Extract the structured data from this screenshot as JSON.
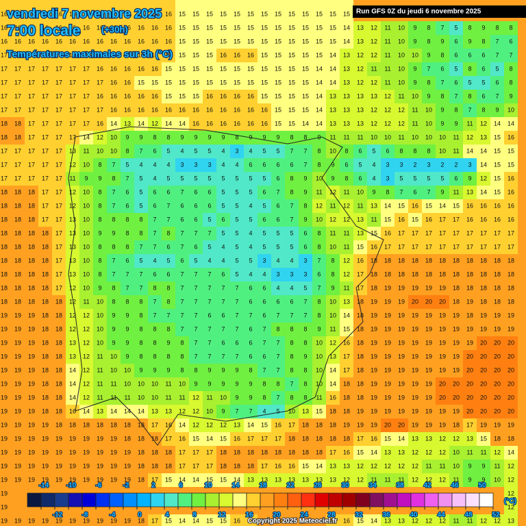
{
  "header": {
    "title": "vendredi 7 novembre 2025",
    "time": "7:00 locale",
    "lead": "(+30h)",
    "subtitle": "Températures maximales sur 3h (°C)",
    "run": "Run GFS 0Z du jeudi 6 novembre 2025"
  },
  "grid": {
    "rows": [
      [
        16,
        16,
        16,
        16,
        16,
        16,
        16,
        16,
        16,
        16,
        16,
        16,
        16,
        15,
        15,
        15,
        15,
        15,
        15,
        15,
        15,
        15,
        15,
        15,
        15,
        15,
        null,
        null,
        null,
        null,
        null,
        null,
        null,
        null,
        null,
        null,
        null,
        null
      ],
      [
        16,
        16,
        16,
        16,
        16,
        16,
        16,
        16,
        16,
        16,
        16,
        16,
        16,
        15,
        15,
        15,
        15,
        15,
        15,
        15,
        15,
        15,
        15,
        15,
        15,
        14,
        13,
        12,
        11,
        10,
        9,
        8,
        7,
        5,
        8,
        9,
        8,
        8
      ],
      [
        16,
        16,
        16,
        16,
        16,
        16,
        16,
        16,
        16,
        16,
        16,
        16,
        16,
        15,
        15,
        15,
        15,
        15,
        15,
        15,
        15,
        15,
        15,
        15,
        15,
        14,
        13,
        12,
        11,
        10,
        9,
        8,
        9,
        6,
        9,
        8,
        7,
        6
      ],
      [
        17,
        17,
        17,
        17,
        17,
        17,
        16,
        16,
        16,
        16,
        16,
        16,
        16,
        15,
        15,
        15,
        16,
        16,
        16,
        15,
        15,
        15,
        15,
        15,
        14,
        13,
        12,
        12,
        11,
        10,
        10,
        9,
        8,
        6,
        6,
        6,
        7,
        7
      ],
      [
        17,
        17,
        17,
        17,
        17,
        17,
        17,
        16,
        16,
        16,
        16,
        16,
        15,
        15,
        15,
        15,
        15,
        15,
        15,
        15,
        15,
        15,
        15,
        14,
        14,
        13,
        12,
        11,
        11,
        10,
        9,
        7,
        6,
        5,
        8,
        6,
        5,
        8
      ],
      [
        17,
        17,
        17,
        17,
        17,
        17,
        17,
        17,
        16,
        16,
        15,
        15,
        15,
        15,
        15,
        15,
        15,
        15,
        15,
        15,
        15,
        15,
        15,
        14,
        14,
        13,
        12,
        12,
        11,
        10,
        9,
        8,
        7,
        6,
        5,
        5,
        6,
        8
      ],
      [
        17,
        17,
        17,
        17,
        17,
        17,
        17,
        16,
        16,
        16,
        16,
        16,
        15,
        15,
        15,
        16,
        16,
        16,
        16,
        15,
        15,
        15,
        15,
        14,
        13,
        13,
        13,
        13,
        12,
        11,
        10,
        9,
        8,
        7,
        8,
        6,
        7,
        9
      ],
      [
        17,
        17,
        17,
        17,
        17,
        17,
        17,
        17,
        16,
        16,
        16,
        16,
        16,
        16,
        16,
        16,
        16,
        16,
        16,
        16,
        15,
        15,
        15,
        14,
        13,
        13,
        13,
        12,
        12,
        12,
        11,
        10,
        9,
        8,
        7,
        8,
        9,
        10
      ],
      [
        18,
        18,
        17,
        17,
        17,
        17,
        17,
        16,
        14,
        13,
        14,
        12,
        14,
        14,
        16,
        16,
        16,
        16,
        16,
        16,
        15,
        15,
        14,
        14,
        13,
        13,
        13,
        12,
        12,
        12,
        11,
        10,
        9,
        9,
        11,
        12,
        14,
        14
      ],
      [
        18,
        18,
        17,
        17,
        17,
        17,
        14,
        12,
        10,
        9,
        9,
        8,
        8,
        9,
        9,
        9,
        9,
        8,
        9,
        9,
        9,
        8,
        8,
        9,
        11,
        11,
        11,
        10,
        10,
        11,
        10,
        10,
        10,
        11,
        12,
        13,
        15,
        16
      ],
      [
        17,
        17,
        17,
        17,
        17,
        13,
        11,
        10,
        10,
        8,
        7,
        6,
        5,
        4,
        5,
        5,
        4,
        3,
        4,
        5,
        5,
        7,
        7,
        8,
        10,
        8,
        6,
        5,
        6,
        8,
        8,
        8,
        10,
        11,
        14,
        14,
        15,
        15
      ],
      [
        17,
        17,
        17,
        17,
        17,
        12,
        10,
        8,
        7,
        5,
        4,
        4,
        4,
        3,
        3,
        3,
        4,
        4,
        6,
        6,
        6,
        6,
        7,
        8,
        9,
        6,
        5,
        4,
        3,
        3,
        2,
        3,
        2,
        2,
        3,
        14,
        15,
        15
      ],
      [
        17,
        17,
        17,
        17,
        17,
        11,
        9,
        9,
        8,
        7,
        5,
        4,
        5,
        5,
        5,
        5,
        5,
        5,
        5,
        5,
        6,
        8,
        9,
        10,
        9,
        8,
        6,
        4,
        3,
        5,
        5,
        5,
        5,
        6,
        9,
        12,
        15,
        16
      ],
      [
        18,
        18,
        18,
        17,
        17,
        12,
        10,
        8,
        7,
        6,
        5,
        6,
        6,
        7,
        6,
        6,
        5,
        5,
        5,
        6,
        7,
        8,
        9,
        11,
        12,
        11,
        10,
        9,
        8,
        7,
        6,
        7,
        9,
        11,
        13,
        14,
        15,
        16
      ],
      [
        18,
        18,
        18,
        17,
        17,
        12,
        10,
        8,
        7,
        6,
        5,
        6,
        7,
        6,
        6,
        6,
        5,
        5,
        4,
        5,
        6,
        7,
        8,
        12,
        11,
        12,
        11,
        13,
        14,
        15,
        16,
        15,
        14,
        15,
        16,
        16,
        16,
        16
      ],
      [
        18,
        18,
        18,
        17,
        17,
        13,
        10,
        8,
        8,
        8,
        8,
        7,
        7,
        6,
        6,
        5,
        6,
        5,
        5,
        6,
        6,
        7,
        9,
        10,
        12,
        12,
        13,
        11,
        15,
        16,
        15,
        16,
        17,
        17,
        16,
        16,
        16,
        16
      ],
      [
        18,
        18,
        18,
        18,
        17,
        13,
        10,
        9,
        9,
        8,
        8,
        7,
        8,
        7,
        7,
        7,
        5,
        5,
        4,
        5,
        5,
        5,
        6,
        8,
        11,
        11,
        13,
        15,
        16,
        17,
        17,
        17,
        17,
        17,
        17,
        17,
        17,
        17
      ],
      [
        18,
        18,
        18,
        18,
        17,
        13,
        10,
        8,
        8,
        8,
        7,
        7,
        6,
        7,
        6,
        5,
        4,
        5,
        4,
        5,
        5,
        5,
        6,
        8,
        10,
        11,
        15,
        16,
        17,
        17,
        17,
        17,
        17,
        17,
        17,
        17,
        17,
        17
      ],
      [
        18,
        18,
        18,
        18,
        17,
        13,
        10,
        8,
        7,
        6,
        5,
        4,
        5,
        6,
        5,
        4,
        4,
        5,
        5,
        3,
        4,
        4,
        3,
        7,
        8,
        12,
        16,
        18,
        18,
        18,
        18,
        18,
        18,
        18,
        18,
        18,
        18,
        18
      ],
      [
        18,
        18,
        18,
        18,
        17,
        13,
        10,
        8,
        7,
        7,
        7,
        6,
        6,
        7,
        7,
        7,
        6,
        5,
        4,
        4,
        3,
        3,
        3,
        6,
        8,
        12,
        17,
        18,
        18,
        18,
        18,
        18,
        18,
        18,
        18,
        18,
        18,
        18
      ],
      [
        18,
        18,
        18,
        18,
        17,
        12,
        10,
        9,
        8,
        7,
        7,
        8,
        8,
        7,
        7,
        7,
        7,
        7,
        6,
        6,
        4,
        4,
        5,
        7,
        9,
        11,
        17,
        18,
        19,
        19,
        19,
        19,
        19,
        18,
        18,
        18,
        18,
        18
      ],
      [
        18,
        18,
        18,
        18,
        18,
        12,
        11,
        10,
        8,
        8,
        8,
        7,
        8,
        7,
        7,
        7,
        7,
        7,
        6,
        6,
        6,
        6,
        7,
        8,
        10,
        13,
        18,
        19,
        19,
        19,
        20,
        20,
        20,
        18,
        19,
        18,
        18,
        18
      ],
      [
        19,
        19,
        19,
        18,
        18,
        12,
        12,
        10,
        9,
        9,
        8,
        7,
        7,
        7,
        7,
        6,
        6,
        7,
        7,
        6,
        7,
        7,
        7,
        8,
        10,
        14,
        18,
        19,
        19,
        19,
        19,
        19,
        19,
        19,
        18,
        19,
        19,
        19
      ],
      [
        19,
        19,
        19,
        18,
        18,
        12,
        12,
        10,
        9,
        9,
        8,
        8,
        8,
        7,
        7,
        7,
        7,
        7,
        6,
        7,
        8,
        8,
        8,
        9,
        11,
        15,
        18,
        19,
        19,
        19,
        19,
        19,
        19,
        19,
        19,
        19,
        19,
        19
      ],
      [
        19,
        19,
        19,
        18,
        18,
        13,
        12,
        10,
        9,
        9,
        8,
        8,
        9,
        8,
        7,
        7,
        6,
        6,
        6,
        7,
        7,
        8,
        8,
        10,
        12,
        16,
        18,
        19,
        19,
        19,
        19,
        19,
        19,
        19,
        19,
        20,
        20,
        20
      ],
      [
        19,
        19,
        19,
        18,
        18,
        13,
        12,
        11,
        10,
        9,
        8,
        8,
        8,
        8,
        7,
        7,
        7,
        7,
        6,
        6,
        7,
        8,
        9,
        10,
        13,
        17,
        18,
        19,
        19,
        19,
        19,
        19,
        19,
        19,
        20,
        20,
        20,
        20
      ],
      [
        19,
        19,
        19,
        18,
        18,
        14,
        12,
        11,
        10,
        10,
        9,
        9,
        9,
        8,
        8,
        9,
        9,
        9,
        8,
        7,
        7,
        8,
        8,
        10,
        14,
        17,
        18,
        19,
        19,
        19,
        19,
        19,
        19,
        19,
        20,
        20,
        20,
        20
      ],
      [
        19,
        19,
        19,
        18,
        18,
        14,
        12,
        11,
        11,
        10,
        10,
        10,
        11,
        10,
        9,
        9,
        9,
        9,
        9,
        8,
        8,
        7,
        8,
        10,
        14,
        18,
        18,
        19,
        19,
        19,
        19,
        19,
        20,
        20,
        20,
        20,
        20,
        20
      ],
      [
        19,
        19,
        19,
        18,
        18,
        14,
        12,
        11,
        11,
        11,
        10,
        10,
        11,
        11,
        12,
        11,
        10,
        9,
        9,
        8,
        7,
        8,
        8,
        11,
        16,
        18,
        18,
        19,
        19,
        19,
        19,
        19,
        20,
        20,
        20,
        20,
        20,
        20
      ],
      [
        19,
        19,
        19,
        18,
        18,
        16,
        14,
        13,
        14,
        14,
        14,
        13,
        13,
        12,
        12,
        10,
        9,
        7,
        7,
        4,
        5,
        10,
        13,
        15,
        18,
        18,
        19,
        19,
        19,
        19,
        19,
        19,
        19,
        19,
        20,
        20,
        20,
        20
      ],
      [
        19,
        19,
        19,
        19,
        18,
        18,
        18,
        18,
        18,
        18,
        18,
        17,
        16,
        14,
        12,
        12,
        12,
        13,
        14,
        15,
        16,
        17,
        18,
        18,
        18,
        19,
        19,
        19,
        20,
        20,
        19,
        19,
        19,
        18,
        17,
        19,
        19,
        19
      ],
      [
        19,
        19,
        19,
        19,
        19,
        19,
        19,
        19,
        19,
        18,
        18,
        18,
        17,
        16,
        15,
        14,
        15,
        16,
        17,
        17,
        17,
        18,
        18,
        18,
        18,
        18,
        17,
        16,
        15,
        14,
        13,
        13,
        12,
        12,
        13,
        15,
        18,
        18
      ],
      [
        19,
        19,
        19,
        19,
        19,
        19,
        19,
        19,
        19,
        19,
        18,
        18,
        18,
        17,
        17,
        17,
        18,
        18,
        18,
        18,
        18,
        18,
        18,
        18,
        17,
        16,
        15,
        14,
        13,
        13,
        12,
        12,
        12,
        10,
        11,
        11,
        12,
        14
      ],
      [
        19,
        19,
        19,
        19,
        19,
        19,
        19,
        19,
        19,
        19,
        18,
        18,
        18,
        17,
        17,
        17,
        18,
        18,
        18,
        17,
        16,
        16,
        15,
        14,
        13,
        13,
        12,
        12,
        12,
        12,
        12,
        11,
        11,
        10,
        9,
        9,
        11,
        12
      ],
      [
        19,
        19,
        19,
        19,
        19,
        19,
        19,
        19,
        19,
        19,
        18,
        17,
        15,
        14,
        14,
        15,
        15,
        14,
        13,
        13,
        13,
        13,
        13,
        13,
        13,
        12,
        12,
        11,
        11,
        11,
        12,
        12,
        12,
        11,
        9,
        9,
        10,
        12
      ],
      [
        19,
        null,
        null,
        null,
        null,
        null,
        null,
        null,
        null,
        null,
        null,
        null,
        null,
        null,
        null,
        null,
        null,
        null,
        null,
        null,
        null,
        null,
        null,
        null,
        null,
        null,
        null,
        null,
        null,
        null,
        null,
        null,
        null,
        null,
        null,
        null,
        null,
        12
      ],
      [
        19,
        null,
        null,
        null,
        null,
        null,
        null,
        null,
        null,
        null,
        null,
        null,
        null,
        null,
        null,
        null,
        null,
        null,
        null,
        null,
        null,
        null,
        null,
        null,
        null,
        null,
        null,
        null,
        null,
        null,
        null,
        null,
        null,
        null,
        null,
        null,
        null,
        12
      ],
      [
        19,
        19,
        19,
        19,
        19,
        19,
        19,
        19,
        19,
        19,
        18,
        17,
        15,
        14,
        14,
        15,
        15,
        16,
        17,
        18,
        18,
        18,
        18,
        18,
        17,
        16,
        15,
        14,
        13,
        13,
        12,
        12,
        12,
        11,
        11,
        12,
        12,
        13
      ]
    ]
  },
  "legend": {
    "lim": [
      -16,
      52
    ],
    "ticks": [
      -14,
      -12,
      -10,
      -8,
      -6,
      -4,
      -2,
      0,
      2,
      4,
      6,
      8,
      10,
      12,
      14,
      16,
      18,
      20,
      22,
      24,
      26,
      28,
      30,
      32,
      34,
      36,
      38,
      40,
      42,
      44,
      46,
      48,
      50,
      52
    ],
    "unit": "(°C)",
    "colors": [
      "#0a1840",
      "#102a6a",
      "#1a3c8c",
      "#1410b4",
      "#0000d8",
      "#0030f0",
      "#0060ff",
      "#0090ff",
      "#00b4ff",
      "#30d4f0",
      "#50e8c8",
      "#50f080",
      "#70f040",
      "#a8f030",
      "#d8f830",
      "#ffff80",
      "#ffd030",
      "#ffa020",
      "#ff8010",
      "#ff6010",
      "#ff3010",
      "#e00000",
      "#c00000",
      "#a00000",
      "#800020",
      "#801060",
      "#a01090",
      "#c010c0",
      "#e030e0",
      "#f060f0",
      "#f090f0",
      "#f8c0f8",
      "#fce0fc",
      "#ffffff"
    ]
  },
  "footer": {
    "copyright": "Copyright 2025 Meteociel.fr"
  }
}
